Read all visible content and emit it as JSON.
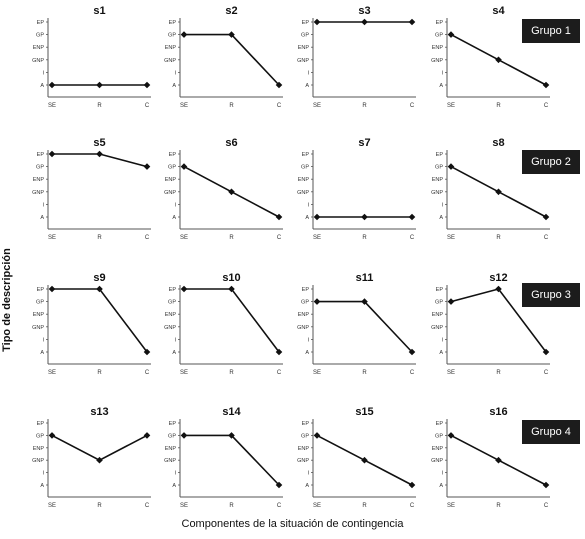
{
  "figure": {
    "ylabel": "Tipo de descripción",
    "xlabel": "Componentes de la situación de contingencia"
  },
  "groups": [
    "Grupo 1",
    "Grupo 2",
    "Grupo 3",
    "Grupo 4"
  ],
  "chart_data": {
    "type": "line",
    "categories": [
      "SE",
      "R",
      "C"
    ],
    "y_levels": [
      "A",
      "I",
      "GNP",
      "ENP",
      "GP",
      "EP"
    ],
    "ylim": [
      0,
      5
    ],
    "xlabel": "Componentes de la situación de contingencia",
    "ylabel": "Tipo de descripción",
    "grid": false,
    "panels": [
      {
        "title": "s1",
        "group": "Grupo 1",
        "values": [
          0,
          0,
          0
        ]
      },
      {
        "title": "s2",
        "group": "Grupo 1",
        "values": [
          4,
          4,
          0
        ]
      },
      {
        "title": "s3",
        "group": "Grupo 1",
        "values": [
          5,
          5,
          5
        ]
      },
      {
        "title": "s4",
        "group": "Grupo 1",
        "values": [
          4,
          2,
          0
        ]
      },
      {
        "title": "s5",
        "group": "Grupo 2",
        "values": [
          5,
          5,
          4
        ]
      },
      {
        "title": "s6",
        "group": "Grupo 2",
        "values": [
          4,
          2,
          0
        ]
      },
      {
        "title": "s7",
        "group": "Grupo 2",
        "values": [
          0,
          0,
          0
        ]
      },
      {
        "title": "s8",
        "group": "Grupo 2",
        "values": [
          4,
          2,
          0
        ]
      },
      {
        "title": "s9",
        "group": "Grupo 3",
        "values": [
          5,
          5,
          0
        ]
      },
      {
        "title": "s10",
        "group": "Grupo 3",
        "values": [
          5,
          5,
          0
        ]
      },
      {
        "title": "s11",
        "group": "Grupo 3",
        "values": [
          4,
          4,
          0
        ]
      },
      {
        "title": "s12",
        "group": "Grupo 3",
        "values": [
          4,
          5,
          0
        ]
      },
      {
        "title": "s13",
        "group": "Grupo 4",
        "values": [
          4,
          2,
          4
        ]
      },
      {
        "title": "s14",
        "group": "Grupo 4",
        "values": [
          4,
          4,
          0
        ]
      },
      {
        "title": "s15",
        "group": "Grupo 4",
        "values": [
          4,
          2,
          0
        ]
      },
      {
        "title": "s16",
        "group": "Grupo 4",
        "values": [
          4,
          2,
          0
        ]
      }
    ]
  },
  "colors": {
    "line": "#111111",
    "axis": "#555555",
    "tag_bg": "#1c1c1c",
    "tag_fg": "#ffffff"
  }
}
